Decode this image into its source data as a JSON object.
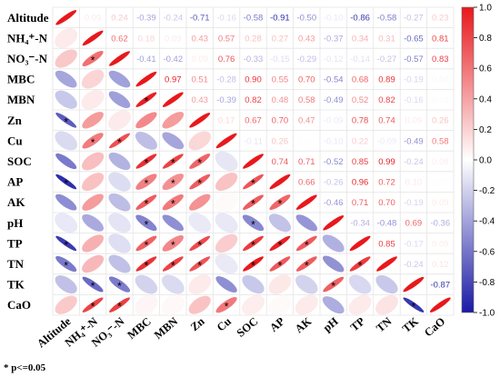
{
  "chart_data": {
    "type": "heatmap",
    "variables": [
      "Altitude",
      "NH₄⁺-N",
      "NO₃⁻-N",
      "MBC",
      "MBN",
      "Zn",
      "Cu",
      "SOC",
      "AP",
      "AK",
      "pH",
      "TP",
      "TN",
      "TK",
      "CaO"
    ],
    "upper": [
      [
        null,
        0.09,
        0.24,
        -0.39,
        -0.24,
        -0.71,
        -0.16,
        -0.58,
        -0.91,
        -0.5,
        -0.1,
        -0.86,
        -0.58,
        -0.27,
        0.23
      ],
      [
        null,
        null,
        0.62,
        0.18,
        0.09,
        0.43,
        0.57,
        0.28,
        0.27,
        0.43,
        -0.37,
        0.34,
        0.31,
        -0.65,
        0.81
      ],
      [
        null,
        null,
        null,
        -0.41,
        -0.42,
        0.09,
        0.76,
        -0.33,
        -0.15,
        -0.29,
        -0.12,
        -0.14,
        -0.27,
        -0.57,
        0.83
      ],
      [
        null,
        null,
        null,
        null,
        0.97,
        0.51,
        -0.28,
        0.9,
        0.55,
        0.7,
        -0.54,
        0.68,
        0.89,
        -0.19,
        0.04
      ],
      [
        null,
        null,
        null,
        null,
        null,
        0.43,
        -0.39,
        0.82,
        0.48,
        0.58,
        -0.49,
        0.52,
        0.82,
        -0.16,
        0.03
      ],
      [
        null,
        null,
        null,
        null,
        null,
        null,
        0.17,
        0.67,
        0.7,
        0.47,
        -0.09,
        0.78,
        0.74,
        0.09,
        0.26
      ],
      [
        null,
        null,
        null,
        null,
        null,
        null,
        null,
        -0.11,
        0.26,
        0.02,
        -0.1,
        0.22,
        -0.09,
        -0.49,
        0.58
      ],
      [
        null,
        null,
        null,
        null,
        null,
        null,
        null,
        null,
        0.74,
        0.71,
        -0.52,
        0.85,
        0.99,
        -0.24,
        0.08
      ],
      [
        null,
        null,
        null,
        null,
        null,
        null,
        null,
        null,
        null,
        0.66,
        -0.26,
        0.96,
        0.72,
        0.1,
        0.02
      ],
      [
        null,
        null,
        null,
        null,
        null,
        null,
        null,
        null,
        null,
        null,
        -0.46,
        0.71,
        0.7,
        -0.19,
        0.09
      ],
      [
        null,
        null,
        null,
        null,
        null,
        null,
        null,
        null,
        null,
        null,
        null,
        -0.34,
        -0.48,
        0.69,
        -0.36
      ],
      [
        null,
        null,
        null,
        null,
        null,
        null,
        null,
        null,
        null,
        null,
        null,
        null,
        0.85,
        -0.17,
        0.09
      ],
      [
        null,
        null,
        null,
        null,
        null,
        null,
        null,
        null,
        null,
        null,
        null,
        null,
        null,
        -0.24,
        0.12
      ],
      [
        null,
        null,
        null,
        null,
        null,
        null,
        null,
        null,
        null,
        null,
        null,
        null,
        null,
        null,
        -0.87
      ],
      [
        null,
        null,
        null,
        null,
        null,
        null,
        null,
        null,
        null,
        null,
        null,
        null,
        null,
        null,
        null
      ]
    ],
    "significant_pairs": [
      [
        2,
        1
      ],
      [
        4,
        3
      ],
      [
        5,
        0
      ],
      [
        6,
        1
      ],
      [
        6,
        2
      ],
      [
        7,
        3
      ],
      [
        7,
        4
      ],
      [
        7,
        5
      ],
      [
        8,
        0
      ],
      [
        8,
        3
      ],
      [
        8,
        4
      ],
      [
        8,
        5
      ],
      [
        8,
        7
      ],
      [
        9,
        3
      ],
      [
        9,
        4
      ],
      [
        9,
        7
      ],
      [
        9,
        8
      ],
      [
        10,
        3
      ],
      [
        10,
        7
      ],
      [
        11,
        0
      ],
      [
        11,
        3
      ],
      [
        11,
        4
      ],
      [
        11,
        5
      ],
      [
        11,
        7
      ],
      [
        11,
        8
      ],
      [
        11,
        9
      ],
      [
        12,
        0
      ],
      [
        12,
        3
      ],
      [
        12,
        4
      ],
      [
        12,
        5
      ],
      [
        12,
        7
      ],
      [
        12,
        8
      ],
      [
        12,
        9
      ],
      [
        12,
        11
      ],
      [
        13,
        1
      ],
      [
        13,
        2
      ],
      [
        13,
        10
      ],
      [
        14,
        1
      ],
      [
        14,
        2
      ],
      [
        14,
        6
      ],
      [
        14,
        13
      ]
    ],
    "colorbar": {
      "min": -1.0,
      "max": 1.0,
      "ticks": [
        1.0,
        0.8,
        0.6,
        0.4,
        0.2,
        0.0,
        -0.2,
        -0.4,
        -0.6,
        -0.8,
        -1.0
      ],
      "tick_labels": [
        "1.0",
        "0.8",
        "0.6",
        "0.4",
        "0.2",
        "0.0",
        "-0.2",
        "-0.4",
        "-0.6",
        "-0.8",
        "-1.0"
      ],
      "low_color": "#1a1aa6",
      "mid_color": "#ffffff",
      "high_color": "#e8181c"
    },
    "lower_triangle": "ellipses",
    "upper_triangle": "numbers",
    "footnote": "* p<=0.05"
  }
}
